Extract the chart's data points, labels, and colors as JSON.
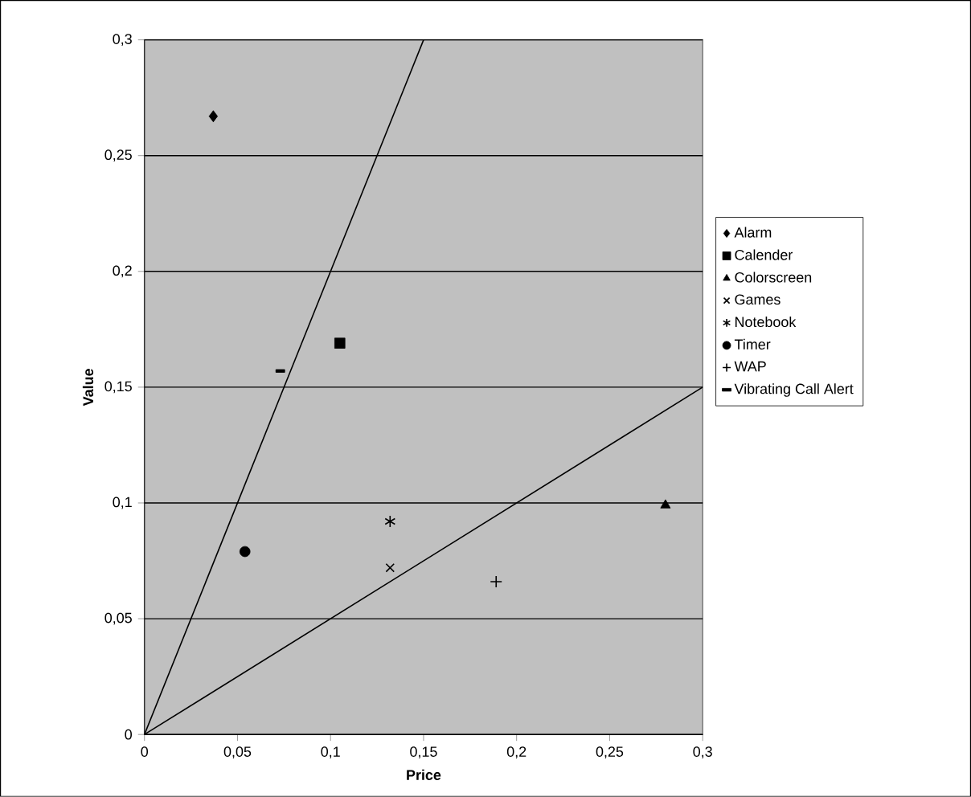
{
  "chart_data": {
    "type": "scatter",
    "xlabel": "Price",
    "ylabel": "Value",
    "xlim": [
      0,
      0.3
    ],
    "ylim": [
      0,
      0.3
    ],
    "xticks": [
      0,
      {
        "value": 0.05,
        "label": "0,05"
      },
      {
        "value": 0.1,
        "label": "0,1"
      },
      {
        "value": 0.15,
        "label": "0,15"
      },
      {
        "value": 0.2,
        "label": "0,2"
      },
      {
        "value": 0.25,
        "label": "0,25"
      },
      {
        "value": 0.3,
        "label": "0,3"
      }
    ],
    "yticks": [
      0,
      {
        "value": 0.05,
        "label": "0,05"
      },
      {
        "value": 0.1,
        "label": "0,1"
      },
      {
        "value": 0.15,
        "label": "0,15"
      },
      {
        "value": 0.2,
        "label": "0,2"
      },
      {
        "value": 0.25,
        "label": "0,25"
      },
      {
        "value": 0.3,
        "label": "0,3"
      }
    ],
    "grid": "y",
    "legend": "right",
    "series": [
      {
        "name": "Alarm",
        "color": "#000000",
        "marker": "diamond",
        "x": [
          0.037
        ],
        "values": [
          0.267
        ]
      },
      {
        "name": "Calender",
        "color": "#000000",
        "marker": "square",
        "x": [
          0.105
        ],
        "values": [
          0.169
        ]
      },
      {
        "name": "Colorscreen",
        "color": "#000000",
        "marker": "triangle",
        "x": [
          0.28
        ],
        "values": [
          0.099
        ]
      },
      {
        "name": "Games",
        "color": "#000000",
        "marker": "cross",
        "x": [
          0.132
        ],
        "values": [
          0.072
        ]
      },
      {
        "name": "Notebook",
        "color": "#000000",
        "x": [
          0.132
        ],
        "values": [
          0.092
        ]
      },
      {
        "name": "Timer",
        "color": "#000000",
        "marker": "circle",
        "x": [
          0.054
        ],
        "values": [
          0.079
        ]
      },
      {
        "name": "WAP",
        "color": "#000000",
        "marker": "plus",
        "x": [
          0.189
        ],
        "values": [
          0.066
        ]
      },
      {
        "name": "Vibrating Call Alert",
        "color": "#000000",
        "x": [
          0.073
        ],
        "values": [
          0.157
        ]
      },
      {
        "type": "line",
        "color": "#000000",
        "marker": "none",
        "x": [
          0,
          0.15
        ],
        "values": [
          0,
          0.3
        ]
      },
      {
        "type": "line",
        "color": "#000000",
        "marker": "none",
        "x": [
          0,
          0.3
        ],
        "values": [
          0,
          0.15
        ]
      }
    ]
  }
}
